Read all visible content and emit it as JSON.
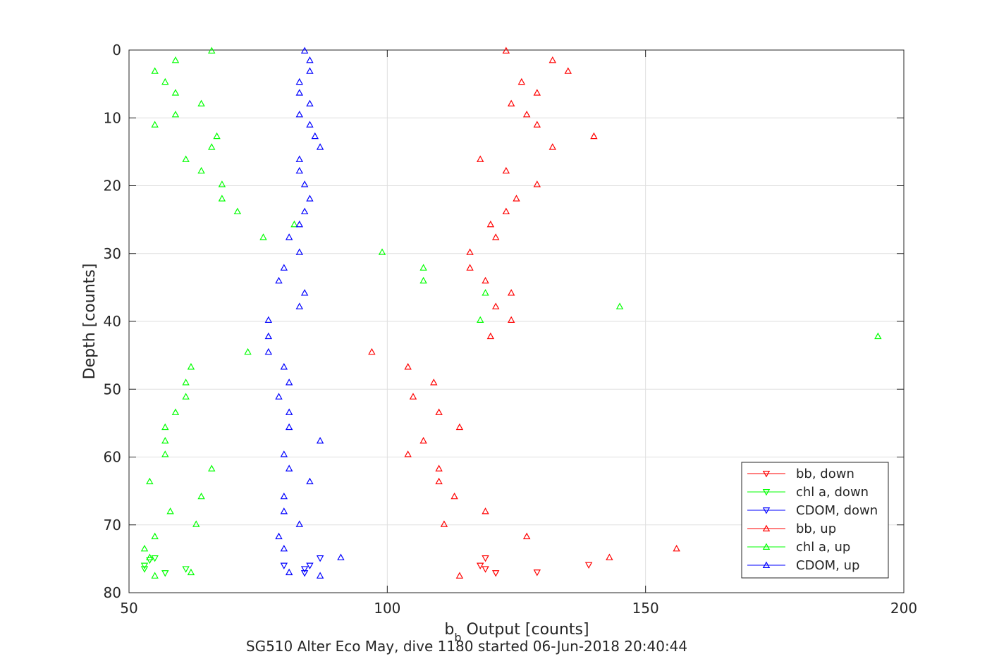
{
  "chart_data": {
    "type": "scatter",
    "title": "",
    "xlabel_main": "b",
    "xlabel_sub": "b",
    "xlabel_rest": " Output [counts]",
    "ylabel": "Depth [counts]",
    "caption": "SG510 Alter Eco May, dive 1180 started 06-Jun-2018 20:40:44",
    "xlim": [
      50,
      200
    ],
    "ylim": [
      0,
      80
    ],
    "y_reversed": true,
    "grid": true,
    "xticks": [
      50,
      100,
      150,
      200
    ],
    "yticks": [
      0,
      10,
      20,
      30,
      40,
      50,
      60,
      70,
      80
    ],
    "legend_position": "bottom-right",
    "series": [
      {
        "name": "bb, down",
        "color": "#ff0000",
        "marker": "triangle-down",
        "points": [
          [
            119,
            74.9
          ],
          [
            118,
            76.0
          ],
          [
            119,
            76.5
          ],
          [
            121,
            77.1
          ],
          [
            129,
            77.0
          ],
          [
            139,
            75.9
          ]
        ]
      },
      {
        "name": "chl a, down",
        "color": "#00ff00",
        "marker": "triangle-down",
        "points": [
          [
            55,
            74.9
          ],
          [
            54,
            75.2
          ],
          [
            53,
            76.0
          ],
          [
            53,
            76.5
          ],
          [
            61,
            76.5
          ],
          [
            57,
            77.1
          ]
        ]
      },
      {
        "name": "CDOM, down",
        "color": "#0000ff",
        "marker": "triangle-down",
        "points": [
          [
            87,
            74.9
          ],
          [
            85,
            76.0
          ],
          [
            84,
            76.5
          ],
          [
            84,
            77.1
          ],
          [
            80,
            76.0
          ]
        ]
      },
      {
        "name": "bb, up",
        "color": "#ff0000",
        "marker": "triangle-up",
        "points": [
          [
            123,
            0.1
          ],
          [
            132,
            1.5
          ],
          [
            135,
            3.1
          ],
          [
            126,
            4.7
          ],
          [
            129,
            6.3
          ],
          [
            124,
            7.9
          ],
          [
            127,
            9.5
          ],
          [
            129,
            11.0
          ],
          [
            140,
            12.7
          ],
          [
            132,
            14.3
          ],
          [
            118,
            16.1
          ],
          [
            123,
            17.8
          ],
          [
            129,
            19.8
          ],
          [
            125,
            21.9
          ],
          [
            123,
            23.8
          ],
          [
            120,
            25.7
          ],
          [
            121,
            27.6
          ],
          [
            116,
            29.8
          ],
          [
            116,
            32.1
          ],
          [
            119,
            34.0
          ],
          [
            124,
            35.8
          ],
          [
            121,
            37.8
          ],
          [
            124,
            39.8
          ],
          [
            120,
            42.2
          ],
          [
            97,
            44.5
          ],
          [
            104,
            46.7
          ],
          [
            109,
            49.0
          ],
          [
            105,
            51.1
          ],
          [
            110,
            53.4
          ],
          [
            114,
            55.6
          ],
          [
            107,
            57.6
          ],
          [
            104,
            59.6
          ],
          [
            110,
            61.7
          ],
          [
            110,
            63.6
          ],
          [
            113,
            65.8
          ],
          [
            119,
            68.0
          ],
          [
            111,
            69.9
          ],
          [
            127,
            71.7
          ],
          [
            156,
            73.5
          ],
          [
            143,
            74.8
          ],
          [
            114,
            77.5
          ]
        ]
      },
      {
        "name": "chl a, up",
        "color": "#00ff00",
        "marker": "triangle-up",
        "points": [
          [
            66,
            0.1
          ],
          [
            59,
            1.5
          ],
          [
            55,
            3.1
          ],
          [
            57,
            4.7
          ],
          [
            59,
            6.3
          ],
          [
            64,
            7.9
          ],
          [
            59,
            9.5
          ],
          [
            55,
            11.0
          ],
          [
            67,
            12.7
          ],
          [
            66,
            14.3
          ],
          [
            61,
            16.1
          ],
          [
            64,
            17.8
          ],
          [
            68,
            19.8
          ],
          [
            68,
            21.9
          ],
          [
            71,
            23.8
          ],
          [
            82,
            25.7
          ],
          [
            76,
            27.6
          ],
          [
            99,
            29.8
          ],
          [
            107,
            32.1
          ],
          [
            107,
            34.0
          ],
          [
            119,
            35.8
          ],
          [
            145,
            37.8
          ],
          [
            118,
            39.8
          ],
          [
            195,
            42.2
          ],
          [
            73,
            44.5
          ],
          [
            62,
            46.7
          ],
          [
            61,
            49.0
          ],
          [
            61,
            51.1
          ],
          [
            59,
            53.4
          ],
          [
            57,
            55.6
          ],
          [
            57,
            57.6
          ],
          [
            57,
            59.6
          ],
          [
            66,
            61.7
          ],
          [
            54,
            63.6
          ],
          [
            64,
            65.8
          ],
          [
            58,
            68.0
          ],
          [
            63,
            69.9
          ],
          [
            55,
            71.7
          ],
          [
            53,
            73.5
          ],
          [
            54,
            74.8
          ],
          [
            62,
            77.0
          ],
          [
            55,
            77.5
          ]
        ]
      },
      {
        "name": "CDOM, up",
        "color": "#0000ff",
        "marker": "triangle-up",
        "points": [
          [
            84,
            0.1
          ],
          [
            85,
            1.5
          ],
          [
            85,
            3.1
          ],
          [
            83,
            4.7
          ],
          [
            83,
            6.3
          ],
          [
            85,
            7.9
          ],
          [
            83,
            9.5
          ],
          [
            85,
            11.0
          ],
          [
            86,
            12.7
          ],
          [
            87,
            14.3
          ],
          [
            83,
            16.1
          ],
          [
            83,
            17.8
          ],
          [
            84,
            19.8
          ],
          [
            85,
            21.9
          ],
          [
            84,
            23.8
          ],
          [
            83,
            25.7
          ],
          [
            81,
            27.6
          ],
          [
            83,
            29.8
          ],
          [
            80,
            32.1
          ],
          [
            79,
            34.0
          ],
          [
            84,
            35.8
          ],
          [
            83,
            37.8
          ],
          [
            77,
            39.8
          ],
          [
            77,
            42.2
          ],
          [
            77,
            44.5
          ],
          [
            80,
            46.7
          ],
          [
            81,
            49.0
          ],
          [
            79,
            51.1
          ],
          [
            81,
            53.4
          ],
          [
            81,
            55.6
          ],
          [
            87,
            57.6
          ],
          [
            80,
            59.6
          ],
          [
            81,
            61.7
          ],
          [
            85,
            63.6
          ],
          [
            80,
            65.8
          ],
          [
            80,
            68.0
          ],
          [
            83,
            69.9
          ],
          [
            79,
            71.7
          ],
          [
            80,
            73.5
          ],
          [
            91,
            74.8
          ],
          [
            81,
            77.0
          ],
          [
            87,
            77.5
          ]
        ]
      }
    ]
  }
}
